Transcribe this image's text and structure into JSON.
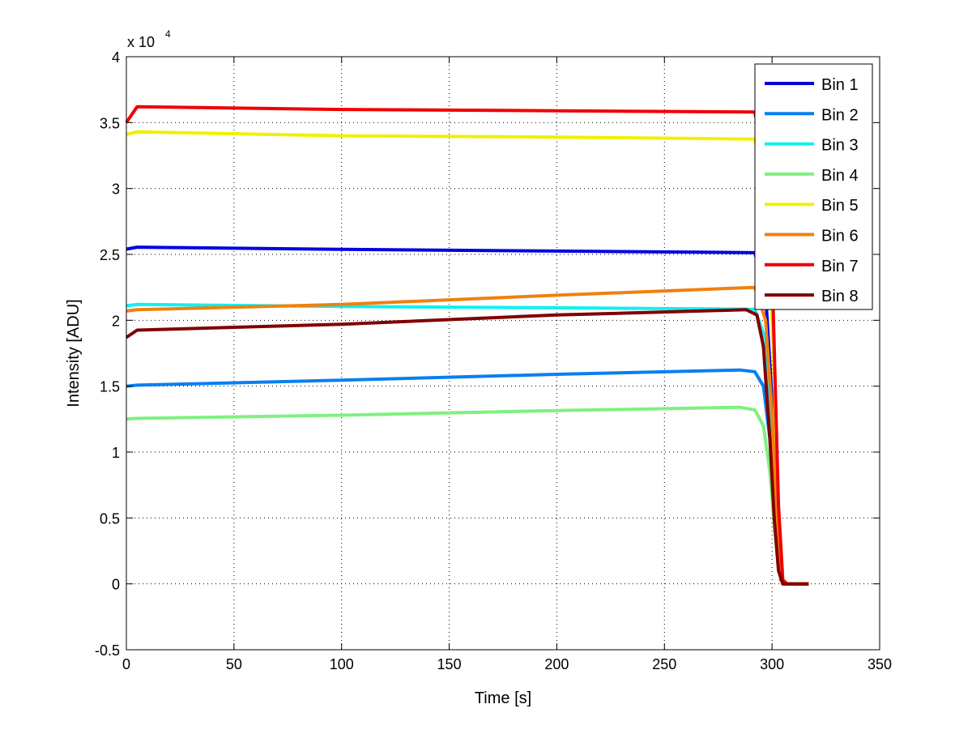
{
  "chart_data": {
    "type": "line",
    "title": "",
    "xlabel": "Time [s]",
    "ylabel": "Intensity [ADU]",
    "y_exponent_label": "x 10",
    "y_exponent_power": "4",
    "xlim": [
      0,
      350
    ],
    "ylim": [
      -5000,
      40000
    ],
    "xticks": [
      0,
      50,
      100,
      150,
      200,
      250,
      300,
      350
    ],
    "xtick_labels": [
      "0",
      "50",
      "100",
      "150",
      "200",
      "250",
      "300",
      "350"
    ],
    "yticks": [
      -5000,
      0,
      5000,
      10000,
      15000,
      20000,
      25000,
      30000,
      35000,
      40000
    ],
    "ytick_labels": [
      "-0.5",
      "0",
      "0.5",
      "1",
      "1.5",
      "2",
      "2.5",
      "3",
      "3.5",
      "4"
    ],
    "grid": true,
    "legend_placement": "top-right",
    "series": [
      {
        "name": "Bin 1",
        "color": "#0000e0",
        "points": [
          [
            0,
            25400
          ],
          [
            5,
            25550
          ],
          [
            100,
            25380
          ],
          [
            200,
            25250
          ],
          [
            292,
            25130
          ],
          [
            297,
            22000
          ],
          [
            300,
            14000
          ],
          [
            302,
            5000
          ],
          [
            304,
            300
          ],
          [
            306,
            0
          ],
          [
            317,
            0
          ]
        ]
      },
      {
        "name": "Bin 2",
        "color": "#0a7ff0",
        "points": [
          [
            0,
            15000
          ],
          [
            5,
            15080
          ],
          [
            100,
            15450
          ],
          [
            200,
            15900
          ],
          [
            285,
            16230
          ],
          [
            292,
            16100
          ],
          [
            296,
            15000
          ],
          [
            299,
            11000
          ],
          [
            301,
            6000
          ],
          [
            303,
            1500
          ],
          [
            305,
            0
          ],
          [
            317,
            0
          ]
        ]
      },
      {
        "name": "Bin 3",
        "color": "#10f0f0",
        "points": [
          [
            0,
            21100
          ],
          [
            5,
            21200
          ],
          [
            100,
            21050
          ],
          [
            200,
            20950
          ],
          [
            292,
            20840
          ],
          [
            297,
            18500
          ],
          [
            300,
            12000
          ],
          [
            302,
            5000
          ],
          [
            304,
            300
          ],
          [
            306,
            0
          ],
          [
            317,
            0
          ]
        ]
      },
      {
        "name": "Bin 4",
        "color": "#80f080",
        "points": [
          [
            0,
            12500
          ],
          [
            5,
            12560
          ],
          [
            100,
            12800
          ],
          [
            200,
            13150
          ],
          [
            285,
            13400
          ],
          [
            292,
            13200
          ],
          [
            296,
            12000
          ],
          [
            299,
            8500
          ],
          [
            301,
            4500
          ],
          [
            303,
            1200
          ],
          [
            305,
            0
          ],
          [
            317,
            0
          ]
        ]
      },
      {
        "name": "Bin 5",
        "color": "#f0f000",
        "points": [
          [
            0,
            34100
          ],
          [
            5,
            34300
          ],
          [
            100,
            34000
          ],
          [
            200,
            33900
          ],
          [
            292,
            33750
          ],
          [
            298,
            28000
          ],
          [
            301,
            16000
          ],
          [
            303,
            5000
          ],
          [
            305,
            300
          ],
          [
            307,
            0
          ],
          [
            317,
            0
          ]
        ]
      },
      {
        "name": "Bin 6",
        "color": "#f08010",
        "points": [
          [
            0,
            20700
          ],
          [
            5,
            20800
          ],
          [
            100,
            21200
          ],
          [
            200,
            21900
          ],
          [
            292,
            22500
          ],
          [
            297,
            20000
          ],
          [
            300,
            13000
          ],
          [
            302,
            5000
          ],
          [
            304,
            300
          ],
          [
            306,
            0
          ],
          [
            317,
            0
          ]
        ]
      },
      {
        "name": "Bin 7",
        "color": "#f00000",
        "points": [
          [
            0,
            35000
          ],
          [
            5,
            36200
          ],
          [
            100,
            36000
          ],
          [
            200,
            35900
          ],
          [
            292,
            35800
          ],
          [
            299,
            30000
          ],
          [
            301,
            18000
          ],
          [
            303,
            6000
          ],
          [
            305,
            300
          ],
          [
            307,
            0
          ],
          [
            317,
            0
          ]
        ]
      },
      {
        "name": "Bin 8",
        "color": "#800000",
        "points": [
          [
            0,
            18700
          ],
          [
            5,
            19250
          ],
          [
            100,
            19700
          ],
          [
            200,
            20400
          ],
          [
            288,
            20800
          ],
          [
            293,
            20400
          ],
          [
            296,
            18000
          ],
          [
            299,
            11000
          ],
          [
            301,
            5000
          ],
          [
            303,
            1000
          ],
          [
            305,
            0
          ],
          [
            317,
            0
          ]
        ]
      }
    ]
  }
}
